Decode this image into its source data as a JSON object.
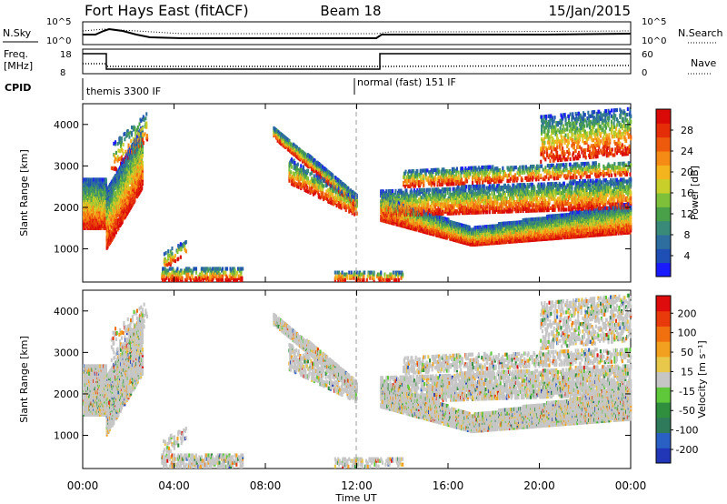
{
  "header": {
    "station": "Fort Hays East (fitACF)",
    "beam": "Beam 18",
    "date": "15/Jan/2015"
  },
  "summary_panels": {
    "nsky_label": "N.Sky",
    "nsky_ticks": [
      "10^5",
      "10^0"
    ],
    "nsearch_label": "N.Search",
    "nsearch_ticks": [
      "10^5",
      "10^0"
    ],
    "freq_label_1": "Freq.",
    "freq_label_2": "[MHz]",
    "freq_ticks": [
      "18",
      "8"
    ],
    "nave_label": "Nave",
    "nave_ticks": [
      "60",
      "0"
    ],
    "cpid_label": "CPID",
    "cpid_segments": [
      {
        "label": "themis 3300 IF",
        "start_hour": 0
      },
      {
        "label": "normal (fast) 151 IF",
        "start_hour": 12
      }
    ]
  },
  "chart_data": [
    {
      "type": "heatmap",
      "name": "power",
      "ylabel": "Slant Range [km]",
      "yticks": [
        1000,
        2000,
        3000,
        4000
      ],
      "ylim": [
        200,
        4500
      ],
      "xlim": [
        0,
        24
      ],
      "colorbar": {
        "label": "Power [dB]",
        "ticks": [
          "4",
          "8",
          "12",
          "16",
          "20",
          "24",
          "28"
        ],
        "colors": [
          "#1a1aff",
          "#1f4fb4",
          "#2d6e9e",
          "#3a8a7a",
          "#4aa048",
          "#7ec03a",
          "#c8cf2a",
          "#f4b41e",
          "#f58a14",
          "#ee5a0c",
          "#e52d08",
          "#da0a08"
        ]
      },
      "gridline_hour": 12
    },
    {
      "type": "heatmap",
      "name": "velocity",
      "ylabel": "Slant Range [km]",
      "yticks": [
        1000,
        2000,
        3000,
        4000
      ],
      "ylim": [
        200,
        4500
      ],
      "xlim": [
        0,
        24
      ],
      "colorbar": {
        "label": "Velocity [m s⁻¹]",
        "ticks": [
          "200",
          "100",
          "50",
          "15",
          "-15",
          "-50",
          "-100",
          "-200"
        ],
        "colors": [
          "#2236b8",
          "#2a5fc4",
          "#2e7a5a",
          "#2f8f3e",
          "#5fc83a",
          "#c6c6c6",
          "#e8c84a",
          "#f2a020",
          "#f07010",
          "#e83a0a",
          "#de0c0c"
        ]
      },
      "gridline_hour": 12
    }
  ],
  "time_axis": {
    "ticks": [
      "00:00",
      "04:00",
      "08:00",
      "12:00",
      "16:00",
      "20:00",
      "00:00"
    ],
    "label": "Time UT"
  }
}
